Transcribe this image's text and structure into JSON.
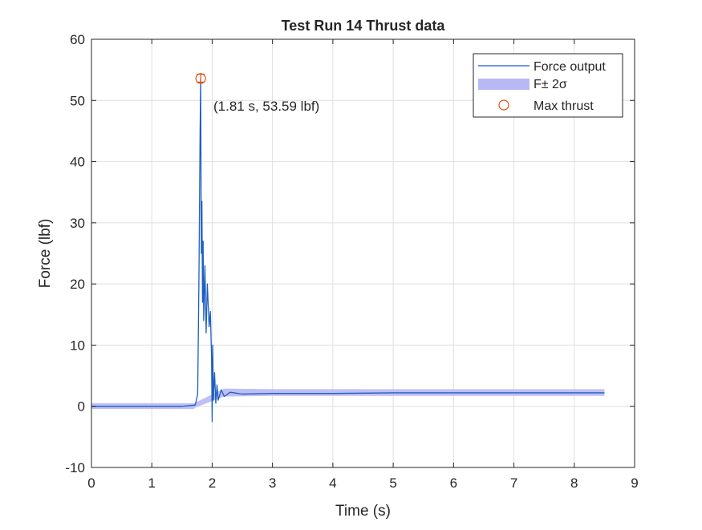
{
  "chart_data": {
    "type": "line",
    "title": "Test Run 14 Thrust data",
    "xlabel": "Time (s)",
    "ylabel": "Force (lbf)",
    "xlim": [
      0,
      9
    ],
    "ylim": [
      -10,
      60
    ],
    "xticks": [
      0,
      1,
      2,
      3,
      4,
      5,
      6,
      7,
      8,
      9
    ],
    "yticks": [
      -10,
      0,
      10,
      20,
      30,
      40,
      50,
      60
    ],
    "grid": true,
    "legend_position": "top-right",
    "legend": [
      {
        "label": "Force output",
        "kind": "line",
        "color": "#1f5fbf"
      },
      {
        "label": "F± 2σ",
        "kind": "band",
        "color": "#b8b8f5"
      },
      {
        "label": "Max thrust",
        "kind": "marker",
        "color": "#d95319"
      }
    ],
    "series": [
      {
        "name": "Force output",
        "color": "#1f5fbf",
        "x": [
          0,
          0.5,
          1.0,
          1.5,
          1.72,
          1.76,
          1.78,
          1.8,
          1.81,
          1.82,
          1.83,
          1.84,
          1.85,
          1.86,
          1.88,
          1.9,
          1.92,
          1.95,
          1.97,
          1.99,
          2.0,
          2.01,
          2.02,
          2.04,
          2.06,
          2.08,
          2.1,
          2.15,
          2.2,
          2.3,
          2.5,
          3.0,
          4.0,
          5.0,
          6.0,
          7.0,
          8.0,
          8.5
        ],
        "y": [
          0,
          0,
          0,
          0,
          0.2,
          2.0,
          20.0,
          45.0,
          53.59,
          25.0,
          33.5,
          17.0,
          27.0,
          14.0,
          23.0,
          12.0,
          20.0,
          13.0,
          15.5,
          8.0,
          -2.5,
          10.0,
          1.0,
          5.5,
          0.5,
          3.5,
          1.0,
          2.7,
          1.6,
          2.3,
          2.0,
          2.1,
          2.1,
          2.2,
          2.2,
          2.2,
          2.2,
          2.2
        ]
      }
    ],
    "band": {
      "name": "F± 2σ",
      "color": "#b8b8f5",
      "x": [
        0,
        1.0,
        1.7,
        1.72,
        2.2,
        3.0,
        4.0,
        5.0,
        6.0,
        7.0,
        8.0,
        8.5
      ],
      "lower": [
        -0.45,
        -0.45,
        -0.45,
        -0.2,
        1.6,
        1.7,
        1.7,
        1.7,
        1.7,
        1.7,
        1.7,
        1.7
      ],
      "upper": [
        0.5,
        0.5,
        0.5,
        0.6,
        2.9,
        2.8,
        2.8,
        2.8,
        2.8,
        2.8,
        2.8,
        2.8
      ]
    },
    "max_thrust": {
      "x": 1.81,
      "y": 53.59,
      "err_low": 53.0,
      "err_high": 54.3
    },
    "annotation": "(1.81 s, 53.59 lbf)"
  }
}
